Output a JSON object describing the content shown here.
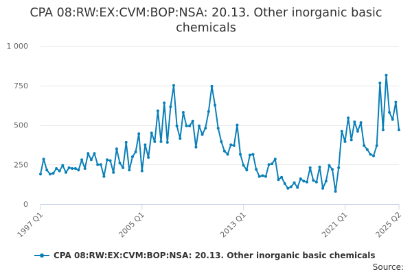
{
  "title_line1": "CPA 08:RW:EX:CVM:BOP:NSA: 20.13. Other inorganic basic",
  "title_line2": "chemicals",
  "legend_label": "CPA 08:RW:EX:CVM:BOP:NSA: 20.13. Other inorganic basic chemicals",
  "source_label": "Source:",
  "colors": {
    "series": "#0a7fb8",
    "grid": "#e6e6e6",
    "axis": "#ccd6eb",
    "tick_text": "#666666"
  },
  "chart_data": {
    "type": "line",
    "title": "CPA 08:RW:EX:CVM:BOP:NSA: 20.13. Other inorganic basic chemicals",
    "xlabel": "",
    "ylabel": "",
    "y_ticks": [
      0,
      250,
      500,
      750,
      1000
    ],
    "y_tick_labels": [
      "0",
      "250",
      "500",
      "750",
      "1 000"
    ],
    "ylim": [
      0,
      1000
    ],
    "x_ticks": [
      {
        "label": "1997 Q1",
        "index": 0
      },
      {
        "label": "2005 Q1",
        "index": 32
      },
      {
        "label": "2013 Q1",
        "index": 64
      },
      {
        "label": "2021 Q1",
        "index": 96
      },
      {
        "label": "2025 Q2",
        "index": 113
      }
    ],
    "grid": true,
    "legend_position": "bottom",
    "series": [
      {
        "name": "CPA 08:RW:EX:CVM:BOP:NSA: 20.13. Other inorganic basic chemicals",
        "start": "1997 Q1",
        "frequency": "quarterly",
        "values": [
          190,
          285,
          215,
          190,
          195,
          225,
          210,
          245,
          200,
          230,
          225,
          225,
          215,
          280,
          225,
          320,
          280,
          320,
          250,
          250,
          175,
          280,
          275,
          200,
          350,
          260,
          230,
          390,
          215,
          300,
          330,
          445,
          210,
          375,
          295,
          450,
          395,
          590,
          395,
          640,
          390,
          615,
          750,
          495,
          415,
          580,
          495,
          495,
          525,
          360,
          495,
          440,
          480,
          585,
          745,
          625,
          480,
          395,
          335,
          315,
          375,
          370,
          500,
          315,
          245,
          215,
          310,
          315,
          220,
          175,
          180,
          175,
          250,
          255,
          285,
          155,
          170,
          130,
          100,
          110,
          135,
          105,
          160,
          145,
          140,
          230,
          150,
          140,
          235,
          100,
          145,
          245,
          220,
          80,
          230,
          460,
          395,
          545,
          405,
          520,
          460,
          515,
          370,
          345,
          315,
          305,
          370,
          765,
          470,
          815,
          580,
          535,
          645,
          470
        ]
      }
    ]
  }
}
